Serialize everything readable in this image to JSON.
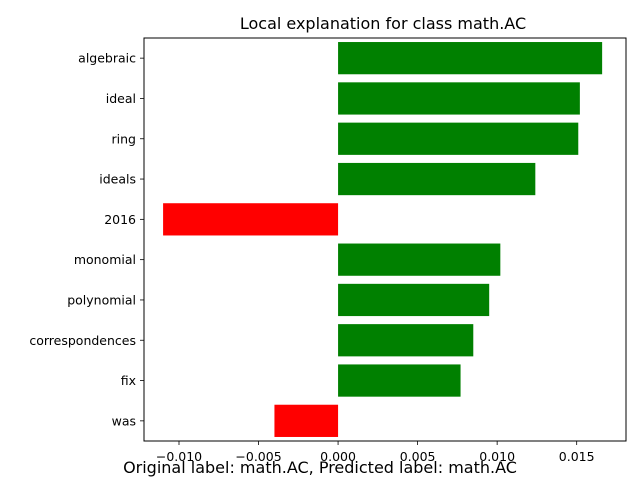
{
  "chart_data": {
    "type": "bar",
    "orientation": "horizontal",
    "title": "Local explanation for class math.AC",
    "caption": "Original label: math.AC, Predicted label: math.AC",
    "categories": [
      "algebraic",
      "ideal",
      "ring",
      "ideals",
      "2016",
      "monomial",
      "polynomial",
      "correspondences",
      "fix",
      "was"
    ],
    "values": [
      0.0166,
      0.0152,
      0.0151,
      0.0124,
      -0.011,
      0.0102,
      0.0095,
      0.0085,
      0.0077,
      -0.004
    ],
    "xlim": [
      -0.0122,
      0.0181
    ],
    "xticks": [
      -0.01,
      -0.005,
      0.0,
      0.005,
      0.01,
      0.015
    ],
    "xtick_labels": [
      "−0.010",
      "−0.005",
      "0.000",
      "0.005",
      "0.010",
      "0.015"
    ],
    "grid": false,
    "colors": {
      "positive": "#008000",
      "negative": "#ff0000",
      "axis": "#000000"
    }
  }
}
